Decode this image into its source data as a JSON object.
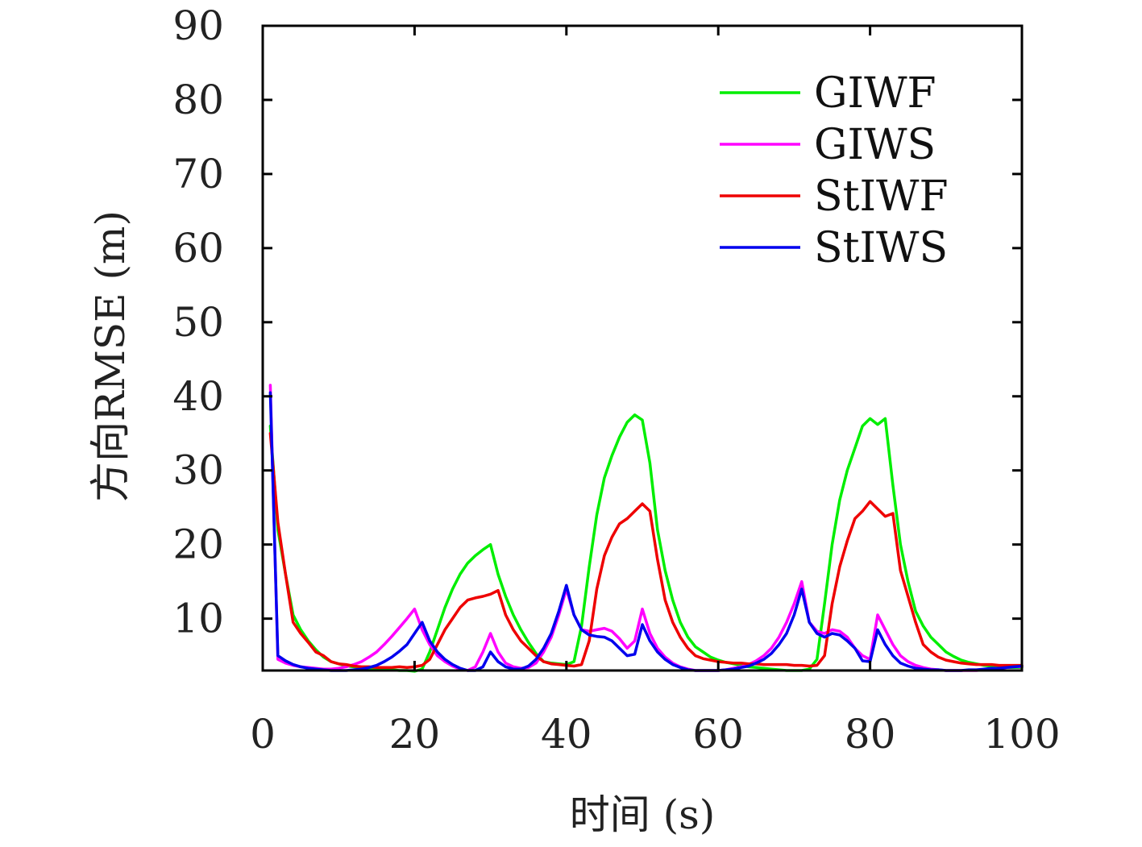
{
  "chart_data": {
    "type": "line",
    "xlabel": "时间 (s)",
    "ylabel": "方向RMSE (m)",
    "xlim": [
      0,
      100
    ],
    "ylim": [
      3,
      90
    ],
    "x_ticks": [
      0,
      20,
      40,
      60,
      80,
      100
    ],
    "y_ticks": [
      10,
      20,
      30,
      40,
      50,
      60,
      70,
      80,
      90
    ],
    "legend_position": "top-right",
    "grid": false,
    "x": [
      1,
      2,
      3,
      4,
      5,
      6,
      7,
      8,
      9,
      10,
      11,
      12,
      13,
      14,
      15,
      16,
      17,
      18,
      19,
      20,
      21,
      22,
      23,
      24,
      25,
      26,
      27,
      28,
      29,
      30,
      31,
      32,
      33,
      34,
      35,
      36,
      37,
      38,
      39,
      40,
      41,
      42,
      43,
      44,
      45,
      46,
      47,
      48,
      49,
      50,
      51,
      52,
      53,
      54,
      55,
      56,
      57,
      58,
      59,
      60,
      61,
      62,
      63,
      64,
      65,
      66,
      67,
      68,
      69,
      70,
      71,
      72,
      73,
      74,
      75,
      76,
      77,
      78,
      79,
      80,
      81,
      82,
      83,
      84,
      85,
      86,
      87,
      88,
      89,
      90,
      91,
      92,
      93,
      94,
      95,
      96,
      97,
      98,
      99,
      100
    ],
    "series": [
      {
        "name": "GIWF",
        "color": "#00ee00",
        "values": [
          36,
          22,
          16,
          10.5,
          8.5,
          7,
          5.8,
          4.8,
          4.2,
          3.9,
          3.6,
          3.5,
          3.4,
          3.3,
          3.2,
          3.1,
          3.1,
          3.0,
          3.0,
          2.9,
          3.2,
          5.5,
          8.5,
          11.5,
          14,
          16,
          17.5,
          18.5,
          19.3,
          20,
          16,
          13,
          10.5,
          8.5,
          6.8,
          5.3,
          4.2,
          4.0,
          3.9,
          3.8,
          4.2,
          9,
          17,
          24,
          29,
          32,
          34.5,
          36.5,
          37.5,
          36.8,
          31,
          22,
          16.5,
          12.5,
          9.5,
          7.5,
          6.2,
          5.5,
          4.8,
          4.4,
          4.1,
          3.9,
          3.7,
          3.5,
          3.4,
          3.3,
          3.2,
          3.1,
          3.0,
          3.0,
          3.0,
          3.2,
          4.5,
          12,
          20,
          26,
          30,
          33,
          36,
          37,
          36.2,
          37,
          28,
          20,
          15,
          11,
          9,
          7.5,
          6.5,
          5.5,
          4.9,
          4.4,
          4.1,
          3.9,
          3.7,
          3.6,
          3.5,
          3.4,
          3.4,
          3.4
        ]
      },
      {
        "name": "GIWS",
        "color": "#ff00ff",
        "values": [
          41.5,
          4.5,
          4.0,
          3.7,
          3.5,
          3.4,
          3.3,
          3.2,
          3.2,
          3.3,
          3.5,
          3.8,
          4.2,
          4.8,
          5.5,
          6.5,
          7.6,
          8.8,
          10,
          11.3,
          8.5,
          6.5,
          5.0,
          4.2,
          3.6,
          3.2,
          3.0,
          3.5,
          5.5,
          8,
          5.5,
          4.0,
          3.5,
          3.3,
          3.4,
          4.0,
          5.5,
          7.5,
          10.5,
          14,
          10.5,
          8.5,
          8.3,
          8.5,
          8.7,
          8.3,
          7.3,
          6.0,
          7.0,
          11.3,
          8.0,
          6.0,
          4.8,
          4.0,
          3.5,
          3.2,
          3.0,
          3.0,
          3.0,
          3.0,
          3.1,
          3.3,
          3.5,
          3.8,
          4.3,
          5.0,
          6.0,
          7.5,
          9.5,
          12,
          15,
          9.5,
          8.3,
          8.0,
          8.5,
          8.3,
          7.5,
          6.0,
          5.0,
          4.5,
          10.5,
          8.5,
          6.5,
          5.0,
          4.2,
          3.7,
          3.4,
          3.2,
          3.1,
          3.0,
          3.0,
          3.0,
          3.0,
          3.0,
          3.1,
          3.2,
          3.3,
          3.4,
          3.5,
          3.5
        ]
      },
      {
        "name": "StIWF",
        "color": "#ee0000",
        "values": [
          35,
          23,
          16,
          9.5,
          8,
          6.8,
          5.5,
          5,
          4.2,
          3.9,
          3.8,
          3.6,
          3.5,
          3.5,
          3.4,
          3.4,
          3.4,
          3.5,
          3.4,
          3.5,
          3.7,
          4.5,
          6.5,
          8.5,
          10,
          11.5,
          12.5,
          12.8,
          13,
          13.3,
          13.8,
          10.5,
          8.5,
          7,
          6,
          5,
          4.2,
          3.9,
          3.8,
          3.7,
          3.6,
          3.8,
          7,
          14,
          18.5,
          21,
          22.8,
          23.5,
          24.5,
          25.5,
          24.5,
          18,
          12.5,
          9.5,
          7.5,
          6.0,
          5.0,
          4.6,
          4.4,
          4.2,
          4.1,
          4.0,
          4.0,
          3.9,
          3.9,
          3.8,
          3.8,
          3.8,
          3.8,
          3.7,
          3.7,
          3.6,
          3.7,
          5.0,
          12,
          17,
          20.5,
          23.5,
          24.5,
          25.8,
          24.8,
          23.8,
          24.2,
          16.5,
          13,
          9.5,
          6.5,
          5.5,
          4.8,
          4.4,
          4.2,
          4.0,
          3.9,
          3.8,
          3.8,
          3.8,
          3.7,
          3.7,
          3.7,
          3.7
        ]
      },
      {
        "name": "StIWS",
        "color": "#0000ee",
        "values": [
          40.5,
          5.0,
          4.3,
          3.8,
          3.5,
          3.3,
          3.2,
          3.1,
          3.0,
          3.0,
          3.0,
          3.1,
          3.2,
          3.4,
          3.7,
          4.2,
          4.8,
          5.6,
          6.5,
          8,
          9.5,
          7.0,
          5.5,
          4.5,
          3.8,
          3.3,
          3.0,
          3.0,
          3.5,
          5.5,
          4.2,
          3.5,
          3.2,
          3.2,
          3.6,
          4.5,
          6.0,
          8.0,
          11,
          14.5,
          10.5,
          8.5,
          7.8,
          7.6,
          7.5,
          7.0,
          6.0,
          5.0,
          5.2,
          9.2,
          7.0,
          5.5,
          4.5,
          3.8,
          3.4,
          3.1,
          3.0,
          3.0,
          3.0,
          3.0,
          3.1,
          3.2,
          3.4,
          3.6,
          4.0,
          4.5,
          5.3,
          6.5,
          8.0,
          10.5,
          14,
          9.5,
          8.0,
          7.5,
          8.0,
          7.8,
          7.0,
          6.0,
          4.3,
          4.2,
          8.5,
          6.5,
          5.0,
          4.0,
          3.6,
          3.3,
          3.2,
          3.1,
          3.1,
          3.0,
          3.0,
          3.0,
          3.1,
          3.1,
          3.2,
          3.3,
          3.3,
          3.4,
          3.5,
          3.6
        ]
      }
    ]
  }
}
